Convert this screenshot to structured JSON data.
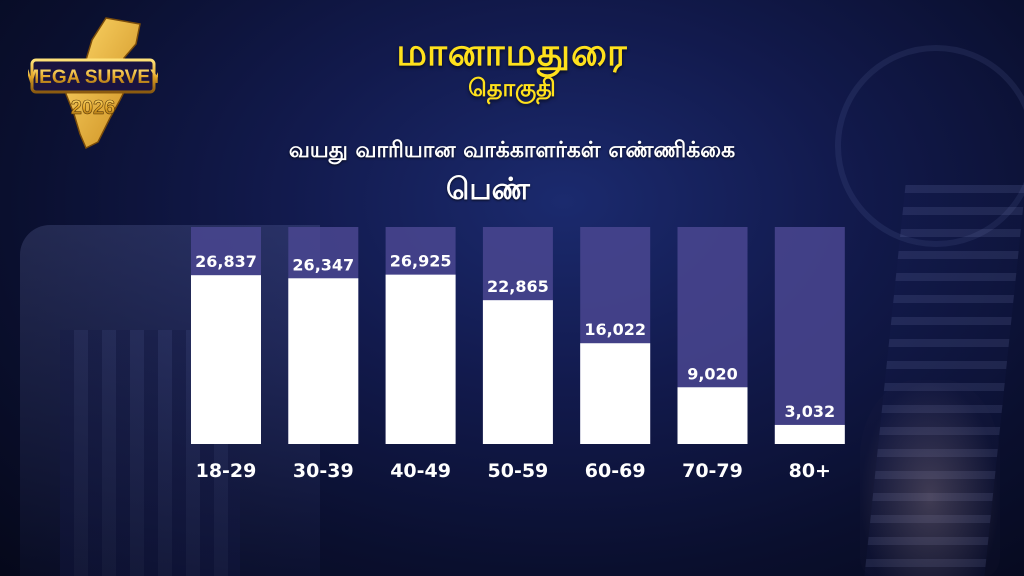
{
  "header": {
    "title": "மானாமதுரை",
    "subtitle": "தொகுதி",
    "chart_heading": "வயது வாரியான வாக்காளர்கள் எண்ணிக்கை",
    "gender": "பெண்"
  },
  "logo": {
    "text_line1": "MEGA SURVEY",
    "text_line2": "2026"
  },
  "colors": {
    "title": "#ffe11c",
    "bar_fill": "#ffffff",
    "bar_track": "#4a4790",
    "value_text": "#ffffff",
    "axis_text": "#ffffff"
  },
  "chart_data": {
    "type": "bar",
    "categories": [
      "18-29",
      "30-39",
      "40-49",
      "50-59",
      "60-69",
      "70-79",
      "80+"
    ],
    "values": [
      26837,
      26347,
      26925,
      22865,
      16022,
      9020,
      3032
    ],
    "value_labels": [
      "26,837",
      "26,347",
      "26,925",
      "22,865",
      "16,022",
      "9,020",
      "3,032"
    ],
    "title": "வயது வாரியான வாக்காளர்கள் எண்ணிக்கை",
    "xlabel": "",
    "ylabel": "",
    "ylim": [
      0,
      34500
    ],
    "grid": false,
    "legend": "none"
  }
}
